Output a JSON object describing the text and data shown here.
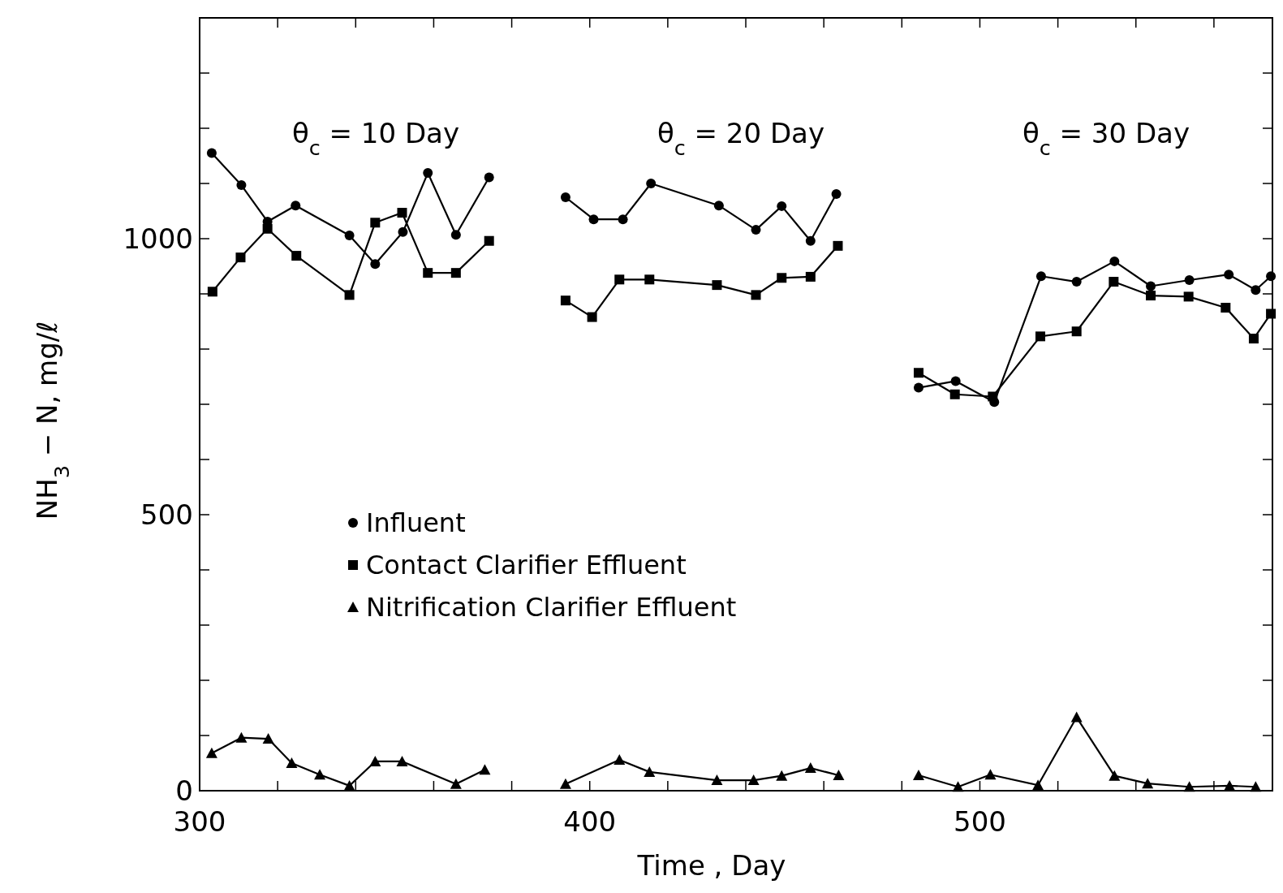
{
  "chart_data": {
    "type": "line",
    "xlabel": "Time , Day",
    "ylabel": "NH$_{3}$ − N, mg/ℓ",
    "xlim": [
      300,
      575
    ],
    "ylim": [
      0,
      1400
    ],
    "xticks": [
      300,
      {
        "value": 320,
        "label": null
      },
      {
        "value": 340,
        "label": null
      },
      {
        "value": 360,
        "label": null
      },
      {
        "value": 380,
        "label": null
      },
      400,
      {
        "value": 420,
        "label": null
      },
      {
        "value": 440,
        "label": null
      },
      {
        "value": 460,
        "label": null
      },
      {
        "value": 480,
        "label": null
      },
      500,
      {
        "value": 520,
        "label": null
      },
      {
        "value": 540,
        "label": null
      },
      {
        "value": 560,
        "label": null
      }
    ],
    "yticks": [
      0,
      {
        "value": 100,
        "label": null
      },
      {
        "value": 200,
        "label": null
      },
      {
        "value": 300,
        "label": null
      },
      {
        "value": 400,
        "label": null
      },
      500,
      {
        "value": 600,
        "label": null
      },
      {
        "value": 700,
        "label": null
      },
      {
        "value": 800,
        "label": null
      },
      {
        "value": 900,
        "label": null
      },
      1000,
      {
        "value": 1100,
        "label": null
      },
      {
        "value": 1200,
        "label": null
      },
      {
        "value": 1300,
        "label": null
      }
    ],
    "grid": false,
    "legend": "left",
    "annotations": [
      "θ$_{c}$ = 10 Day",
      "θ$_{c}$ = 20 Day",
      "θ$_{c}$ = 30 Day"
    ],
    "series": [
      {
        "name": "Influent",
        "color": "#000000",
        "marker": "circle",
        "x": [
          303.1,
          310.7,
          317.4,
          324.6,
          338.4,
          345,
          352.1,
          358.5,
          365.7,
          374.2,
          385,
          393.8,
          401,
          408.5,
          415.7,
          433.1,
          442.6,
          449.2,
          456.6,
          463.2,
          475,
          484.3,
          493.8,
          503.7,
          515.7,
          524.8,
          534.5,
          543.8,
          553.7,
          563.8,
          570.7,
          574.6
        ],
        "values": [
          1155,
          1097,
          1031,
          1060,
          1006,
          954,
          1012,
          1119,
          1007,
          1111,
          null,
          1075,
          1035,
          1035,
          1100,
          1060,
          1016,
          1059,
          996,
          1081,
          null,
          730,
          742,
          704,
          932,
          922,
          959,
          914,
          925,
          935,
          907,
          932
        ]
      },
      {
        "name": "Contact Clarifier Effluent",
        "color": "#000000",
        "marker": "square",
        "x": [
          303.3,
          310.5,
          317.4,
          324.8,
          338.4,
          345,
          351.9,
          358.5,
          365.7,
          374.2,
          385,
          393.8,
          400.6,
          407.6,
          415.3,
          432.6,
          442.6,
          449.2,
          456.6,
          463.6,
          475,
          484.3,
          493.6,
          503.3,
          515.5,
          524.8,
          534.3,
          543.8,
          553.5,
          563,
          570.2,
          574.6
        ],
        "values": [
          904,
          966,
          1018,
          969,
          898,
          1029,
          1047,
          938,
          938,
          996,
          null,
          888,
          858,
          926,
          926,
          916,
          898,
          929,
          931,
          987,
          null,
          757,
          718,
          714,
          823,
          832,
          922,
          897,
          895,
          875,
          819,
          864
        ]
      },
      {
        "name": "Nitrification Clarifier Effluent",
        "color": "#000000",
        "marker": "triangle",
        "x": [
          303.1,
          310.7,
          317.6,
          323.6,
          330.8,
          338.4,
          345,
          351.9,
          365.7,
          373.1,
          385,
          393.8,
          407.6,
          415.3,
          432.6,
          442,
          449.2,
          456.6,
          463.8,
          475,
          484.3,
          494.4,
          502.7,
          514.9,
          524.8,
          534.5,
          543,
          553.7,
          564,
          570.7
        ],
        "values": [
          68,
          96,
          94,
          50,
          29,
          9,
          53,
          53,
          12,
          38,
          null,
          12,
          56,
          34,
          19,
          19,
          27,
          41,
          28,
          null,
          28,
          7,
          29,
          10,
          133,
          27,
          13,
          7,
          9,
          7
        ]
      }
    ]
  }
}
